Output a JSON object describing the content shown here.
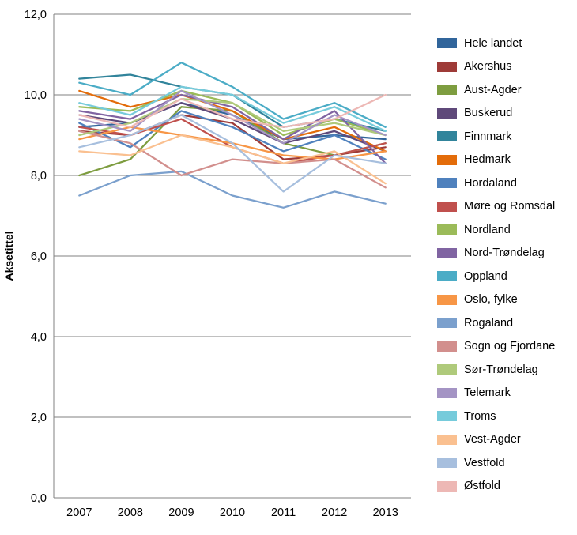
{
  "chart_data": {
    "type": "line",
    "title": "",
    "xlabel": "",
    "ylabel": "Aksetittel",
    "ylim": [
      0,
      12
    ],
    "ytick_step": 2,
    "ytick_labels": [
      "0,0",
      "2,0",
      "4,0",
      "6,0",
      "8,0",
      "10,0",
      "12,0"
    ],
    "grid": "horizontal",
    "legend_position": "right",
    "categories": [
      "2007",
      "2008",
      "2009",
      "2010",
      "2011",
      "2012",
      "2013"
    ],
    "series": [
      {
        "name": "Hele landet",
        "color": "#31659B",
        "values": [
          9.2,
          9.3,
          9.8,
          9.5,
          8.9,
          9.0,
          8.9
        ]
      },
      {
        "name": "Akershus",
        "color": "#9E3B38",
        "values": [
          9.1,
          9.0,
          9.5,
          9.3,
          8.4,
          8.5,
          8.7
        ]
      },
      {
        "name": "Aust-Agder",
        "color": "#7E9D40",
        "values": [
          8.0,
          8.4,
          9.7,
          9.6,
          8.8,
          8.5,
          8.8
        ]
      },
      {
        "name": "Buskerud",
        "color": "#5F497A",
        "values": [
          9.5,
          9.3,
          9.8,
          9.4,
          8.8,
          9.1,
          8.6
        ]
      },
      {
        "name": "Finnmark",
        "color": "#31849B",
        "values": [
          10.4,
          10.5,
          10.2,
          10.0,
          9.2,
          9.4,
          9.1
        ]
      },
      {
        "name": "Hedmark",
        "color": "#E36C0A",
        "values": [
          10.1,
          9.7,
          10.0,
          9.6,
          8.9,
          9.2,
          8.6
        ]
      },
      {
        "name": "Hordaland",
        "color": "#4F81BD",
        "values": [
          9.3,
          8.7,
          9.6,
          9.2,
          8.6,
          9.0,
          8.4
        ]
      },
      {
        "name": "Møre og Romsdal",
        "color": "#C0504D",
        "values": [
          9.2,
          9.0,
          9.4,
          8.7,
          8.3,
          8.5,
          8.8
        ]
      },
      {
        "name": "Nordland",
        "color": "#9BBB59",
        "values": [
          9.7,
          9.6,
          10.1,
          9.8,
          9.0,
          9.4,
          9.0
        ]
      },
      {
        "name": "Nord-Trøndelag",
        "color": "#8064A2",
        "values": [
          9.6,
          9.4,
          10.0,
          9.7,
          8.9,
          9.6,
          8.3
        ]
      },
      {
        "name": "Oppland",
        "color": "#4BACC6",
        "values": [
          10.3,
          10.0,
          10.8,
          10.2,
          9.4,
          9.8,
          9.2
        ]
      },
      {
        "name": "Oslo, fylke",
        "color": "#F79646",
        "values": [
          8.9,
          9.2,
          9.0,
          8.8,
          8.5,
          8.4,
          8.6
        ]
      },
      {
        "name": "Rogaland",
        "color": "#7BA0CD",
        "values": [
          7.5,
          8.0,
          8.1,
          7.5,
          7.2,
          7.6,
          7.3
        ]
      },
      {
        "name": "Sogn og Fjordane",
        "color": "#D28F8D",
        "values": [
          9.1,
          8.8,
          8.0,
          8.4,
          8.3,
          8.4,
          7.7
        ]
      },
      {
        "name": "Sør-Trøndelag",
        "color": "#AFCA7B",
        "values": [
          9.0,
          9.3,
          9.9,
          9.8,
          9.1,
          9.3,
          9.0
        ]
      },
      {
        "name": "Telemark",
        "color": "#A494C4",
        "values": [
          9.4,
          9.1,
          10.1,
          9.5,
          8.8,
          9.5,
          9.0
        ]
      },
      {
        "name": "Troms",
        "color": "#76CBDB",
        "values": [
          9.8,
          9.5,
          10.2,
          10.0,
          9.3,
          9.7,
          9.1
        ]
      },
      {
        "name": "Vest-Agder",
        "color": "#FAC090",
        "values": [
          8.6,
          8.5,
          9.0,
          8.7,
          8.3,
          8.6,
          7.8
        ]
      },
      {
        "name": "Vestfold",
        "color": "#A7BFDE",
        "values": [
          8.7,
          9.0,
          9.5,
          8.8,
          7.6,
          8.5,
          8.3
        ]
      },
      {
        "name": "Østfold",
        "color": "#EDB8B5",
        "values": [
          9.5,
          9.2,
          9.9,
          9.4,
          9.2,
          9.4,
          10.0
        ]
      }
    ]
  }
}
